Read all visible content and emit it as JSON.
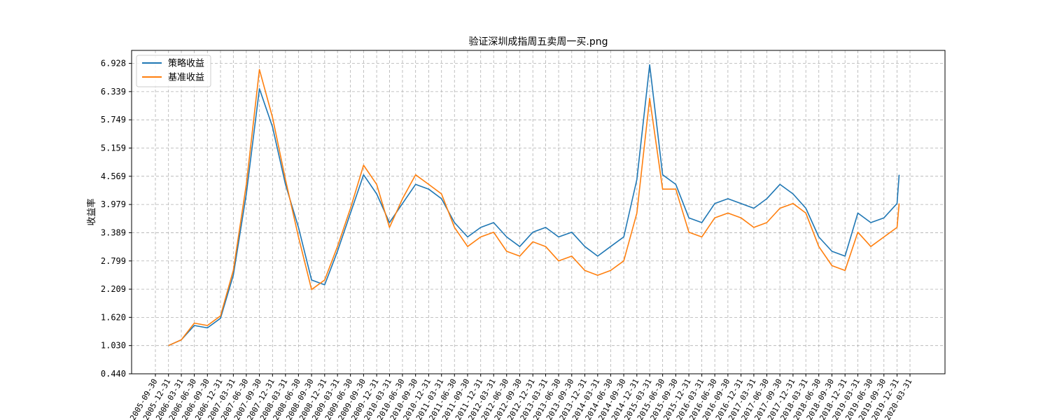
{
  "chart_data": {
    "type": "line",
    "title": "验证深圳成指周五卖周一买.png",
    "xlabel": "",
    "ylabel": "收益率",
    "ylim": [
      0.44,
      7.2
    ],
    "y_ticks": [
      "0.440",
      "1.030",
      "1.620",
      "2.209",
      "2.799",
      "3.389",
      "3.979",
      "4.569",
      "5.159",
      "5.749",
      "6.339",
      "6.928"
    ],
    "x_ticks": [
      "2005-09-30",
      "2005-12-31",
      "2006-03-31",
      "2006-06-30",
      "2006-09-30",
      "2006-12-31",
      "2007-03-31",
      "2007-06-30",
      "2007-09-30",
      "2007-12-31",
      "2008-03-31",
      "2008-06-30",
      "2008-09-30",
      "2008-12-31",
      "2009-03-31",
      "2009-06-30",
      "2009-09-30",
      "2009-12-31",
      "2010-03-31",
      "2010-06-30",
      "2010-09-30",
      "2010-12-31",
      "2011-03-31",
      "2011-06-30",
      "2011-09-30",
      "2011-12-31",
      "2012-03-31",
      "2012-06-30",
      "2012-09-30",
      "2012-12-31",
      "2013-03-31",
      "2013-06-30",
      "2013-09-30",
      "2013-12-31",
      "2014-03-31",
      "2014-06-30",
      "2014-09-30",
      "2014-12-31",
      "2015-03-31",
      "2015-06-30",
      "2015-09-30",
      "2015-12-31",
      "2016-03-31",
      "2016-06-30",
      "2016-09-30",
      "2016-12-31",
      "2017-03-31",
      "2017-06-30",
      "2017-09-30",
      "2017-12-31",
      "2018-03-31",
      "2018-06-30",
      "2018-09-30",
      "2018-12-31",
      "2019-03-31",
      "2019-06-30",
      "2019-09-30",
      "2019-12-31",
      "2020-03-31"
    ],
    "grid": true,
    "legend_position": "top-left",
    "series": [
      {
        "name": "策略收益",
        "color": "#1f77b4",
        "x": [
          "2005-12-31",
          "2006-03-31",
          "2006-06-30",
          "2006-09-30",
          "2006-12-31",
          "2007-03-31",
          "2007-06-30",
          "2007-09-30",
          "2007-12-31",
          "2008-03-31",
          "2008-06-30",
          "2008-09-30",
          "2008-12-31",
          "2009-03-31",
          "2009-06-30",
          "2009-09-30",
          "2009-12-31",
          "2010-03-31",
          "2010-06-30",
          "2010-09-30",
          "2010-12-31",
          "2011-03-31",
          "2011-06-30",
          "2011-09-30",
          "2011-12-31",
          "2012-03-31",
          "2012-06-30",
          "2012-09-30",
          "2012-12-31",
          "2013-03-31",
          "2013-06-30",
          "2013-09-30",
          "2013-12-31",
          "2014-03-31",
          "2014-06-30",
          "2014-09-30",
          "2014-12-31",
          "2015-03-31",
          "2015-06-30",
          "2015-09-30",
          "2015-12-31",
          "2016-03-31",
          "2016-06-30",
          "2016-09-30",
          "2016-12-31",
          "2017-03-31",
          "2017-06-30",
          "2017-09-30",
          "2017-12-31",
          "2018-03-31",
          "2018-06-30",
          "2018-09-30",
          "2018-12-31",
          "2019-03-31",
          "2019-06-30",
          "2019-09-30",
          "2019-12-31",
          "2020-01-15"
        ],
        "values": [
          1.03,
          1.15,
          1.45,
          1.4,
          1.6,
          2.5,
          4.2,
          6.4,
          5.6,
          4.4,
          3.5,
          2.4,
          2.3,
          3.0,
          3.8,
          4.6,
          4.2,
          3.6,
          4.0,
          4.4,
          4.3,
          4.1,
          3.6,
          3.3,
          3.5,
          3.6,
          3.3,
          3.1,
          3.4,
          3.5,
          3.3,
          3.4,
          3.1,
          2.9,
          3.1,
          3.3,
          4.5,
          6.9,
          4.6,
          4.4,
          3.7,
          3.6,
          4.0,
          4.1,
          4.0,
          3.9,
          4.1,
          4.4,
          4.2,
          3.9,
          3.3,
          3.0,
          2.9,
          3.8,
          3.6,
          3.7,
          4.0,
          4.6
        ]
      },
      {
        "name": "基准收益",
        "color": "#ff7f0e",
        "x": [
          "2005-12-31",
          "2006-03-31",
          "2006-06-30",
          "2006-09-30",
          "2006-12-31",
          "2007-03-31",
          "2007-06-30",
          "2007-09-30",
          "2007-12-31",
          "2008-03-31",
          "2008-06-30",
          "2008-09-30",
          "2008-12-31",
          "2009-03-31",
          "2009-06-30",
          "2009-09-30",
          "2009-12-31",
          "2010-03-31",
          "2010-06-30",
          "2010-09-30",
          "2010-12-31",
          "2011-03-31",
          "2011-06-30",
          "2011-09-30",
          "2011-12-31",
          "2012-03-31",
          "2012-06-30",
          "2012-09-30",
          "2012-12-31",
          "2013-03-31",
          "2013-06-30",
          "2013-09-30",
          "2013-12-31",
          "2014-03-31",
          "2014-06-30",
          "2014-09-30",
          "2014-12-31",
          "2015-03-31",
          "2015-06-30",
          "2015-09-30",
          "2015-12-31",
          "2016-03-31",
          "2016-06-30",
          "2016-09-30",
          "2016-12-31",
          "2017-03-31",
          "2017-06-30",
          "2017-09-30",
          "2017-12-31",
          "2018-03-31",
          "2018-06-30",
          "2018-09-30",
          "2018-12-31",
          "2019-03-31",
          "2019-06-30",
          "2019-09-30",
          "2019-12-31",
          "2020-01-15"
        ],
        "values": [
          1.03,
          1.15,
          1.5,
          1.45,
          1.65,
          2.6,
          4.4,
          6.8,
          5.8,
          4.5,
          3.3,
          2.2,
          2.4,
          3.1,
          3.9,
          4.8,
          4.4,
          3.5,
          4.1,
          4.6,
          4.4,
          4.2,
          3.5,
          3.1,
          3.3,
          3.4,
          3.0,
          2.9,
          3.2,
          3.1,
          2.8,
          2.9,
          2.6,
          2.5,
          2.6,
          2.8,
          3.8,
          6.2,
          4.3,
          4.3,
          3.4,
          3.3,
          3.7,
          3.8,
          3.7,
          3.5,
          3.6,
          3.9,
          4.0,
          3.8,
          3.1,
          2.7,
          2.6,
          3.4,
          3.1,
          3.3,
          3.5,
          4.0
        ]
      }
    ]
  }
}
